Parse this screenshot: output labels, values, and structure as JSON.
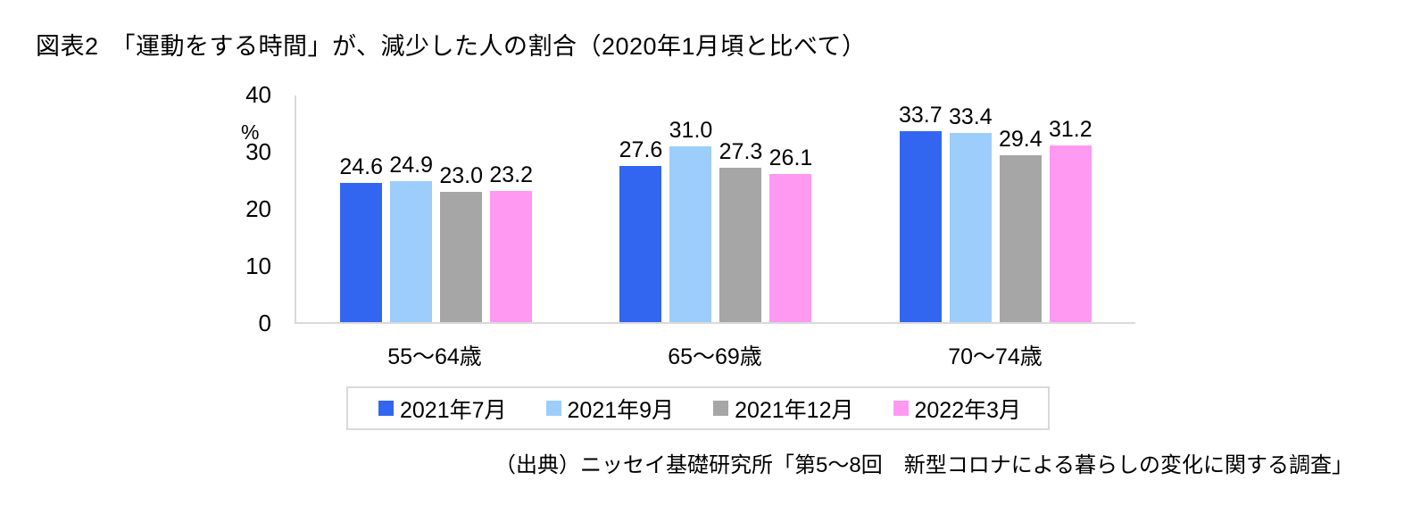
{
  "title": "図表2　「運動をする時間」が、減少した人の割合（2020年1月頃と比べて）",
  "source": "（出典）ニッセイ基礎研究所「第5～8回　新型コロナによる暮らしの変化に関する調査」",
  "chart_data": {
    "type": "bar",
    "title": "図表2　「運動をする時間」が、減少した人の割合（2020年1月頃と比べて）",
    "unit_label": "%",
    "categories": [
      "55～64歳",
      "65～69歳",
      "70～74歳"
    ],
    "series": [
      {
        "name": "2021年7月",
        "color": "#3366f0",
        "values": [
          24.6,
          27.6,
          33.7
        ]
      },
      {
        "name": "2021年9月",
        "color": "#9dcdfb",
        "values": [
          24.9,
          31.0,
          33.4
        ]
      },
      {
        "name": "2021年12月",
        "color": "#a6a6a6",
        "values": [
          23.0,
          27.3,
          29.4
        ]
      },
      {
        "name": "2022年3月",
        "color": "#ff99f2",
        "values": [
          23.2,
          26.1,
          31.2
        ]
      }
    ],
    "ylim": [
      0,
      40
    ],
    "yticks": [
      0,
      10,
      20,
      30,
      40
    ],
    "grid": false,
    "legend_position": "bottom",
    "value_label_decimals": 1,
    "axis_color": "#d9d9d9"
  }
}
